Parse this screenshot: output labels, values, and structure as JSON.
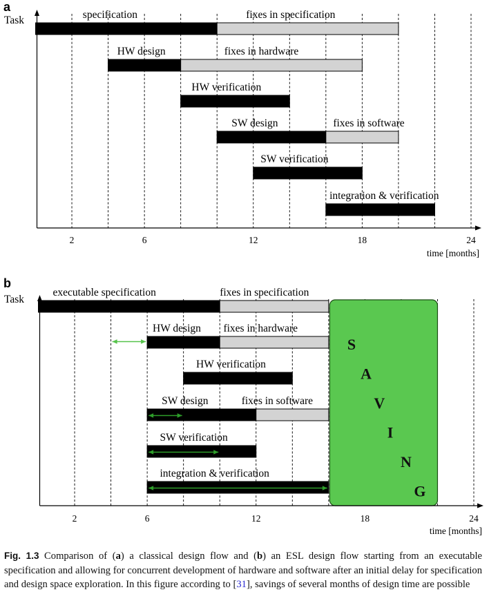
{
  "chart_data": [
    {
      "type": "gantt",
      "panel_label": "a",
      "ylabel": "Task",
      "xlabel": "time [months]",
      "xlim": [
        0,
        24
      ],
      "x_ticks": [
        2,
        6,
        12,
        18,
        24
      ],
      "gridlines_at": [
        2,
        4,
        6,
        8,
        10,
        12,
        14,
        16,
        18,
        20,
        22,
        24
      ],
      "tasks": [
        {
          "label": "specification",
          "start": 0,
          "end": 10,
          "fill": "black",
          "label_at": 2.6
        },
        {
          "label": "fixes in specification",
          "start": 10,
          "end": 20,
          "fill": "gray",
          "label_at": 11.6
        },
        {
          "label": "HW design",
          "start": 4,
          "end": 8,
          "fill": "black",
          "label_at": 4.5
        },
        {
          "label": "fixes in hardware",
          "start": 8,
          "end": 18,
          "fill": "gray",
          "label_at": 10.4
        },
        {
          "label": "HW verification",
          "start": 8,
          "end": 14,
          "fill": "black",
          "label_at": 8.6
        },
        {
          "label": "SW design",
          "start": 10,
          "end": 16,
          "fill": "black",
          "label_at": 10.8
        },
        {
          "label": "fixes in software",
          "start": 16,
          "end": 20,
          "fill": "gray",
          "label_at": 16.4
        },
        {
          "label": "SW verification",
          "start": 12,
          "end": 18,
          "fill": "black",
          "label_at": 12.4
        },
        {
          "label": "integration & verification",
          "start": 16,
          "end": 22,
          "fill": "black",
          "label_at": 16.2
        }
      ]
    },
    {
      "type": "gantt",
      "panel_label": "b",
      "ylabel": "Task",
      "xlabel": "time [months]",
      "xlim": [
        0,
        24
      ],
      "x_ticks": [
        2,
        6,
        12,
        18,
        24
      ],
      "gridlines_at": [
        2,
        4,
        6,
        8,
        10,
        12,
        14,
        16,
        18,
        20,
        22,
        24
      ],
      "tasks": [
        {
          "label": "executable specification",
          "start": 0,
          "end": 10,
          "fill": "black",
          "label_at": 0.8
        },
        {
          "label": "fixes in specification",
          "start": 10,
          "end": 16,
          "fill": "gray",
          "label_at": 10.0
        },
        {
          "label": "HW design",
          "start": 6,
          "end": 10,
          "fill": "black",
          "label_at": 6.3
        },
        {
          "label": "fixes in hardware",
          "start": 10,
          "end": 16,
          "fill": "gray",
          "label_at": 10.2
        },
        {
          "label": "HW verification",
          "start": 8,
          "end": 14,
          "fill": "black",
          "label_at": 8.7
        },
        {
          "label": "SW design",
          "start": 6,
          "end": 12,
          "fill": "black",
          "label_at": 6.8
        },
        {
          "label": "fixes in software",
          "start": 12,
          "end": 16,
          "fill": "gray",
          "label_at": 11.2
        },
        {
          "label": "SW verification",
          "start": 6,
          "end": 12,
          "fill": "black",
          "label_at": 6.7
        },
        {
          "label": "integration & verification",
          "start": 6,
          "end": 16,
          "fill": "black",
          "label_at": 6.7
        }
      ],
      "arrows": [
        {
          "row": 1,
          "from": 4,
          "to": 6,
          "color": "#55c24a"
        },
        {
          "row": 3,
          "from": 6,
          "to": 8,
          "color": "#2e9e2a"
        },
        {
          "row": 4,
          "from": 6,
          "to": 10,
          "color": "#2e9e2a"
        },
        {
          "row": 5,
          "from": 6,
          "to": 16,
          "color": "#2e9e2a"
        }
      ],
      "saving": {
        "start": 16,
        "end": 22,
        "letters": [
          "S",
          "A",
          "V",
          "I",
          "N",
          "G"
        ],
        "color": "#5ac850"
      }
    }
  ],
  "caption": {
    "label": "Fig. 1.3",
    "part1": "  Comparison of (",
    "a": "a",
    "part2": ") a classical design flow and (",
    "b": "b",
    "part3": ") an ESL design flow starting from an executable specification and allowing for concurrent development of hardware and software after an initial delay for specification and design space exploration. In this figure according to [",
    "ref": "31",
    "part4": "], savings of several months of design time are possible"
  }
}
